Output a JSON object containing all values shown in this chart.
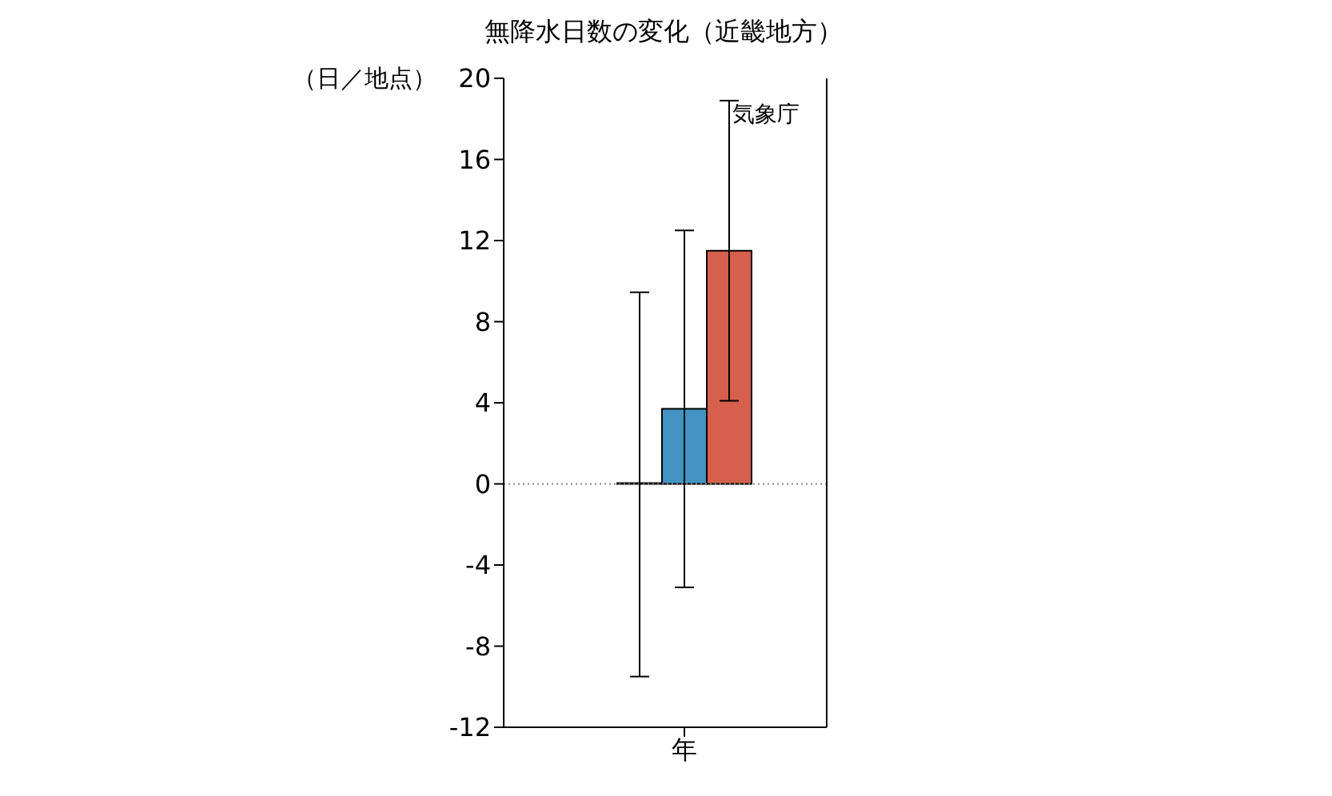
{
  "chart_data": {
    "type": "bar",
    "title": "無降水日数の変化（近畿地方）",
    "ylabel": "（日／地点）",
    "categories": [
      "年"
    ],
    "series": [
      {
        "color": "#ffffff",
        "values": [
          0
        ],
        "errors": [
          [
            -9.5,
            9.45
          ]
        ]
      },
      {
        "color": "#4393c3",
        "values": [
          3.7
        ],
        "errors": [
          [
            -5.1,
            12.5
          ]
        ]
      },
      {
        "color": "#d6604d",
        "values": [
          11.5
        ],
        "errors": [
          [
            4.1,
            18.9
          ]
        ]
      }
    ],
    "ylim": [
      -12,
      20
    ],
    "yticks": [
      -12,
      -8,
      -4,
      0,
      4,
      8,
      12,
      16,
      20
    ],
    "grid": false,
    "legend": false,
    "ref_lines": [
      {
        "axis": "y",
        "value": 0,
        "color": "#888888",
        "line_style": "dotted"
      }
    ],
    "annotations": [
      "気象庁"
    ]
  }
}
